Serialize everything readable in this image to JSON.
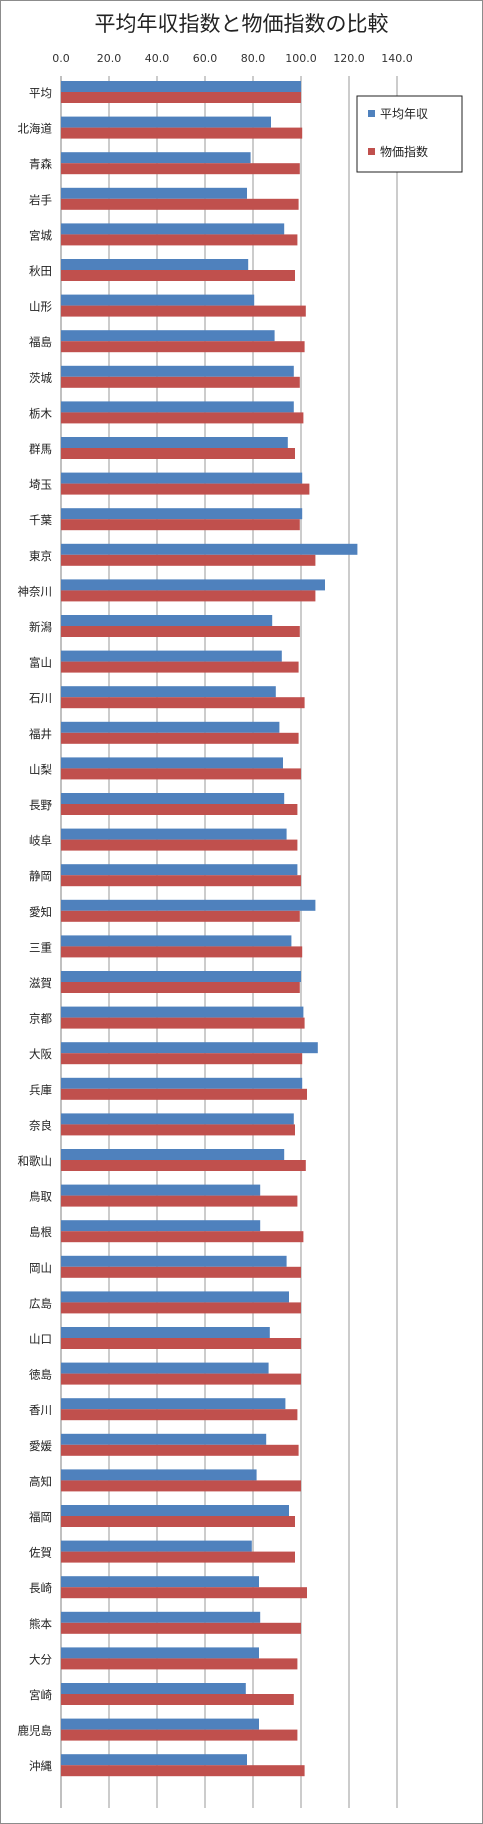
{
  "chart_data": {
    "type": "bar",
    "orientation": "horizontal",
    "title": "平均年収指数と物価指数の比較",
    "xlim": [
      0,
      140
    ],
    "xticks": [
      "0.0",
      "20.0",
      "40.0",
      "60.0",
      "80.0",
      "100.0",
      "120.0",
      "140.0"
    ],
    "grid": true,
    "legend_position": "top-right",
    "categories": [
      "平均",
      "北海道",
      "青森",
      "岩手",
      "宮城",
      "秋田",
      "山形",
      "福島",
      "茨城",
      "栃木",
      "群馬",
      "埼玉",
      "千葉",
      "東京",
      "神奈川",
      "新潟",
      "富山",
      "石川",
      "福井",
      "山梨",
      "長野",
      "岐阜",
      "静岡",
      "愛知",
      "三重",
      "滋賀",
      "京都",
      "大阪",
      "兵庫",
      "奈良",
      "和歌山",
      "鳥取",
      "島根",
      "岡山",
      "広島",
      "山口",
      "徳島",
      "香川",
      "愛媛",
      "高知",
      "福岡",
      "佐賀",
      "長崎",
      "熊本",
      "大分",
      "宮崎",
      "鹿児島",
      "沖縄"
    ],
    "series": [
      {
        "name": "平均年収",
        "color": "#4f81bd",
        "values": [
          100,
          87.5,
          79,
          77.5,
          93,
          78,
          80.5,
          89,
          97,
          97,
          94.5,
          100.5,
          100.5,
          123.5,
          110,
          88,
          92,
          89.5,
          91,
          92.5,
          93,
          94,
          98.5,
          106,
          96,
          100,
          101,
          107,
          100.5,
          97,
          93,
          83,
          83,
          94,
          95,
          87,
          86.5,
          93.5,
          85.5,
          81.5,
          95,
          79.5,
          82.5,
          83,
          82.5,
          77,
          82.5,
          77.5
        ]
      },
      {
        "name": "物価指数",
        "color": "#c0504d",
        "values": [
          100,
          100.5,
          99.5,
          99,
          98.5,
          97.5,
          102,
          101.5,
          99.5,
          101,
          97.5,
          103.5,
          99.5,
          106,
          106,
          99.5,
          99,
          101.5,
          99,
          100,
          98.5,
          98.5,
          100,
          99.5,
          100.5,
          99.5,
          101.5,
          100.5,
          102.5,
          97.5,
          102,
          98.5,
          101,
          100,
          100,
          100,
          100,
          98.5,
          99,
          100,
          97.5,
          97.5,
          102.5,
          100,
          98.5,
          97,
          98.5,
          101.5
        ]
      }
    ]
  },
  "legend": {
    "items": [
      {
        "label": "平均年収",
        "color": "#4f81bd"
      },
      {
        "label": "物価指数",
        "color": "#c0504d"
      }
    ]
  }
}
